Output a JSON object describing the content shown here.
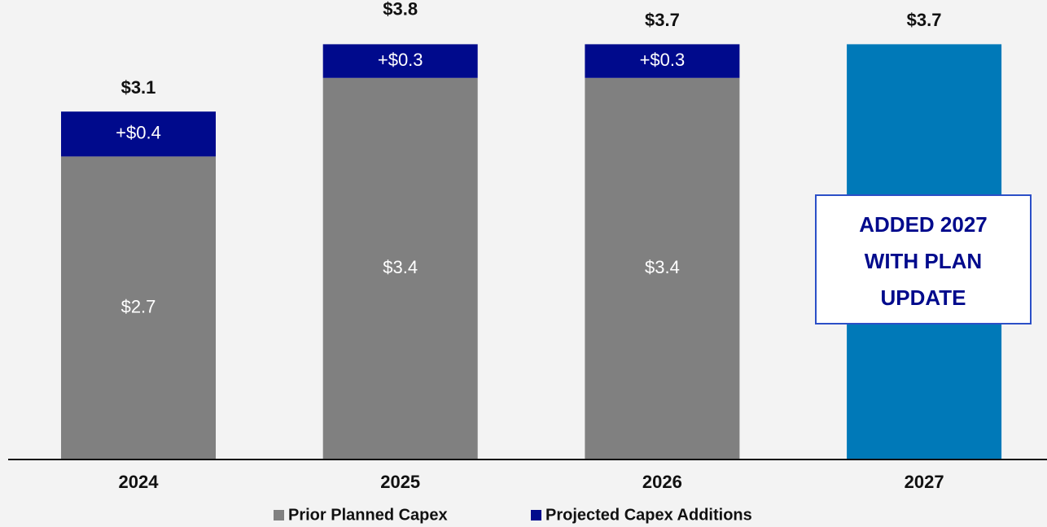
{
  "chart_data": {
    "type": "stacked_bar",
    "categories": [
      "2024",
      "2025",
      "2026",
      "2027"
    ],
    "series": [
      {
        "name": "Prior Planned Capex",
        "color": "#808080",
        "colors": [
          "#808080",
          "#808080",
          "#808080",
          "#0079b8"
        ],
        "values": [
          2.7,
          3.4,
          3.4,
          3.7
        ],
        "value_labels": [
          "$2.7",
          "$3.4",
          "$3.4",
          null
        ]
      },
      {
        "name": "Projected Capex Additions",
        "color": "#000a8c",
        "values": [
          0.4,
          0.3,
          0.3,
          null
        ],
        "value_labels": [
          "+$0.4",
          "+$0.3",
          "+$0.3",
          null
        ]
      }
    ],
    "totals": [
      3.1,
      3.8,
      3.7,
      3.7
    ],
    "total_labels": [
      "$3.1",
      "$3.8",
      "$3.7",
      "$3.7"
    ],
    "annotation": [
      "ADDED 2027",
      "WITH PLAN",
      "UPDATE"
    ],
    "legend": "bottom"
  }
}
